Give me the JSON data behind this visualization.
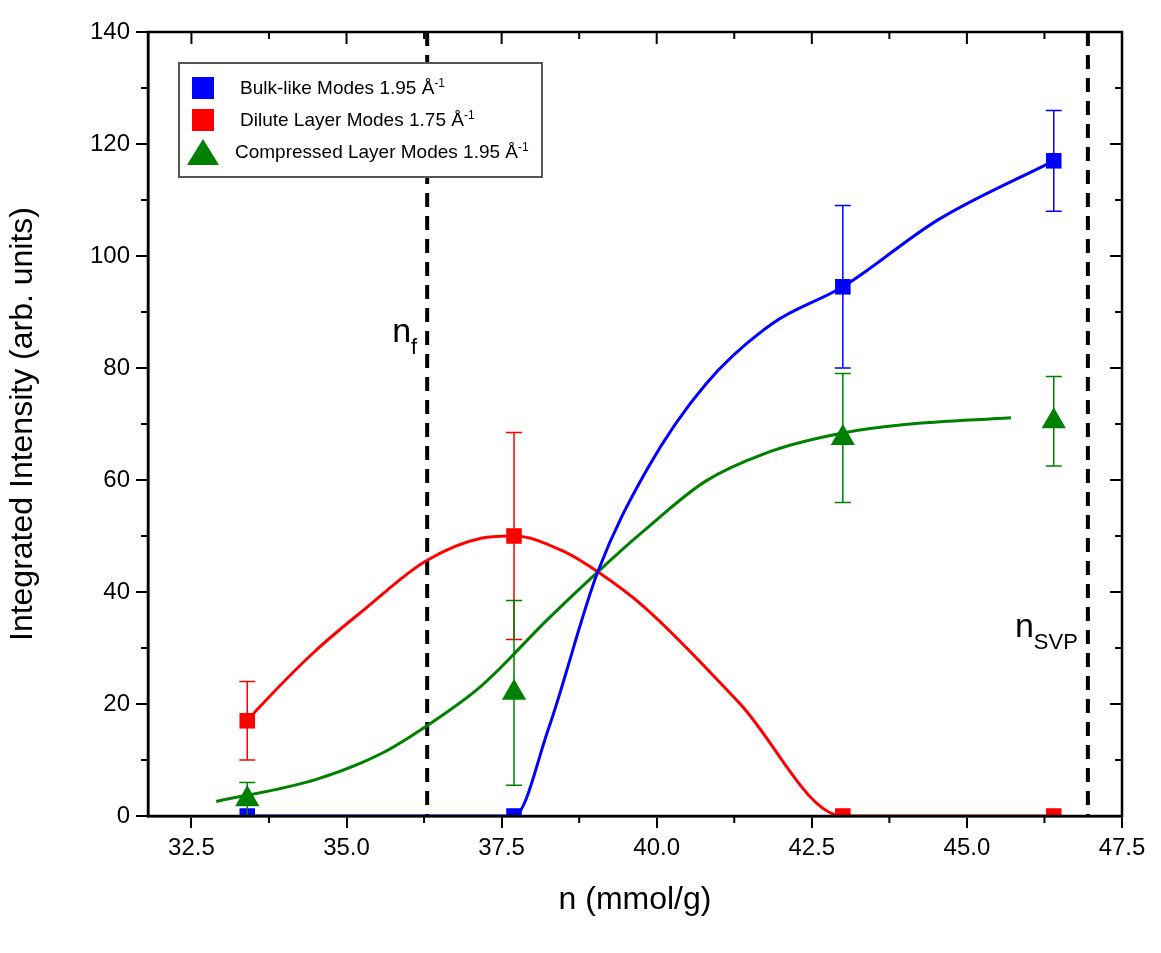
{
  "chart_data": {
    "type": "scatter",
    "xlabel": "n (mmol/g)",
    "ylabel": "Integrated Intensity (arb. units)",
    "xlim": [
      31.8,
      47.5
    ],
    "xticks": [
      {
        "value": 32.5,
        "label": "32.5"
      },
      {
        "value": 35,
        "label": "35.0"
      },
      {
        "value": 37.5,
        "label": "37.5"
      },
      {
        "value": 40,
        "label": "40.0"
      },
      {
        "value": 42.5,
        "label": "42.5"
      },
      {
        "value": 45,
        "label": "45.0"
      },
      {
        "value": 47.5,
        "label": "47.5"
      }
    ],
    "ylim": [
      0,
      140
    ],
    "yticks": [
      0,
      20,
      40,
      60,
      80,
      100,
      120,
      140
    ],
    "grid": false,
    "legend": "top left",
    "series": [
      {
        "name": "Bulk-like Modes 1.95 Å$^{-1}$",
        "color": "#0000ff",
        "marker": "square",
        "x": [
          33.4,
          37.7,
          43.0,
          46.4
        ],
        "values": [
          0,
          0,
          94.5,
          117
        ],
        "errors": [
          null,
          null,
          14.5,
          9
        ]
      },
      {
        "name": "Dilute Layer Modes 1.75 Å$^{-1}$",
        "color": "#ff0000",
        "marker": "square",
        "x": [
          33.4,
          37.7,
          43.0,
          46.4
        ],
        "values": [
          17,
          50,
          0,
          0
        ],
        "errors": [
          7,
          18.5,
          null,
          null
        ]
      },
      {
        "name": "Compressed Layer Modes 1.95 Å$^{-1}$",
        "color": "#008000",
        "marker": "triangle",
        "x": [
          33.4,
          37.7,
          43.0,
          46.4
        ],
        "values": [
          3,
          22,
          67.5,
          70.5
        ],
        "errors": [
          3,
          16.5,
          11.5,
          8
        ]
      },
      {
        "color": "#0000ff",
        "type": "line",
        "marker": "none",
        "x": [
          33.4,
          37.7,
          38.25,
          39.05,
          39.85,
          40.79,
          41.86,
          43.0,
          44.54,
          46.4
        ],
        "values": [
          0,
          0,
          15.4,
          43.6,
          62,
          77.1,
          87.9,
          94.5,
          106.5,
          117
        ]
      },
      {
        "color": "#ff0000",
        "type": "line",
        "marker": "none",
        "x": [
          33.4,
          33.56,
          34.47,
          35.3,
          36.26,
          37.17,
          37.7,
          38.51,
          39.05,
          39.8,
          41.33,
          43.0,
          46.4
        ],
        "values": [
          17,
          19,
          29.2,
          37,
          45.4,
          49.6,
          50,
          47.2,
          43.6,
          37.3,
          20.2,
          0,
          0
        ]
      },
      {
        "color": "#008000",
        "type": "line",
        "marker": "none",
        "x": [
          32.9,
          34.5,
          35.57,
          36.32,
          37.17,
          38.25,
          39.05,
          39.8,
          40.79,
          41.86,
          43.0,
          44.0,
          45.71
        ],
        "values": [
          2.6,
          6.5,
          11.2,
          16.3,
          23.2,
          35.2,
          43.6,
          51,
          59.8,
          65.2,
          68.4,
          69.9,
          71.1
        ]
      }
    ],
    "ref_lines": [
      {
        "axis": "x",
        "value": 36.3,
        "label": "n$_{f}$",
        "color": "#000000",
        "line_style": "dashed"
      },
      {
        "axis": "x",
        "value": 46.95,
        "label": "n$_{SVP}$",
        "color": "#000000",
        "line_style": "dashed"
      }
    ]
  }
}
